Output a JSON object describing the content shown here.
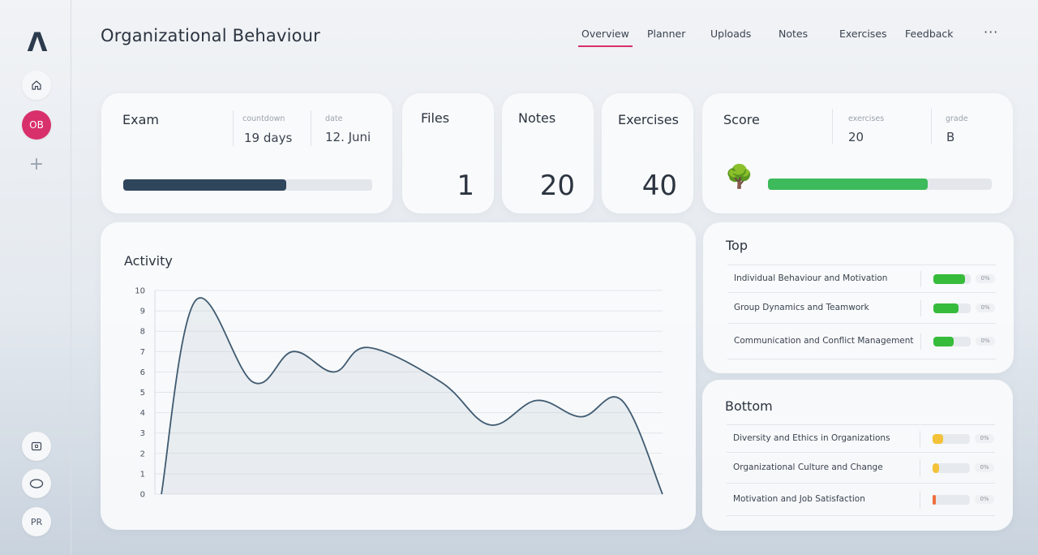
{
  "sidebar": {
    "logo": "Λ",
    "course_badge": "OB",
    "add": "+",
    "user_initials": "PR",
    "icons": [
      "home-icon",
      "plus-icon",
      "media-icon",
      "oval-icon"
    ]
  },
  "header": {
    "title": "Organizational Behaviour",
    "nav": [
      "Overview",
      "Planner",
      "Uploads",
      "Notes",
      "Exercises",
      "Feedback"
    ],
    "active_nav": "Overview",
    "more": "···"
  },
  "colors": {
    "accent": "#d8306a",
    "exam_bar": "#2f455c",
    "score_bar": "#3dba5b",
    "top_bar": "#37bb3b",
    "bottom_yellow": "#f3c238",
    "bottom_orange": "#ee6f3c"
  },
  "exam": {
    "title": "Exam",
    "countdown_label": "countdown",
    "countdown_value": "19 days",
    "date_label": "date",
    "date_value": "12. Juni",
    "progress": 0.655
  },
  "files": {
    "title": "Files",
    "value": "1"
  },
  "notes": {
    "title": "Notes",
    "value": "20"
  },
  "exercises": {
    "title": "Exercises",
    "value": "40"
  },
  "score": {
    "title": "Score",
    "exercises_label": "exercises",
    "exercises_value": "20",
    "grade_label": "grade",
    "grade_value": "B",
    "icon": "🌳",
    "progress": 0.715
  },
  "top": {
    "title": "Top",
    "items": [
      {
        "label": "Individual Behaviour and Motivation",
        "pct": "0%",
        "fill": 0.85
      },
      {
        "label": "Group Dynamics and Teamwork",
        "pct": "0%",
        "fill": 0.68
      },
      {
        "label": "Communication and Conflict Management",
        "pct": "0%",
        "fill": 0.55
      }
    ]
  },
  "bottom": {
    "title": "Bottom",
    "items": [
      {
        "label": "Diversity and Ethics in Organizations",
        "pct": "0%",
        "fill": 0.28,
        "color": "#f3c238"
      },
      {
        "label": "Organizational Culture and Change",
        "pct": "0%",
        "fill": 0.18,
        "color": "#f3c238"
      },
      {
        "label": "Motivation and Job Satisfaction",
        "pct": "0%",
        "fill": 0.08,
        "color": "#ee6f3c"
      }
    ]
  },
  "chart_data": {
    "type": "area",
    "title": "Activity",
    "xlabel": "",
    "ylabel": "",
    "ylim": [
      0,
      10
    ],
    "yticks": [
      "0",
      "1",
      "2",
      "3",
      "4",
      "5",
      "6",
      "7",
      "8",
      "9",
      "10"
    ],
    "grid": true,
    "series": [
      {
        "values": [
          0,
          9.5,
          5.5,
          7.0,
          6.0,
          7.2,
          5.5,
          3.4,
          4.6,
          3.8,
          4.6,
          0
        ]
      }
    ]
  }
}
